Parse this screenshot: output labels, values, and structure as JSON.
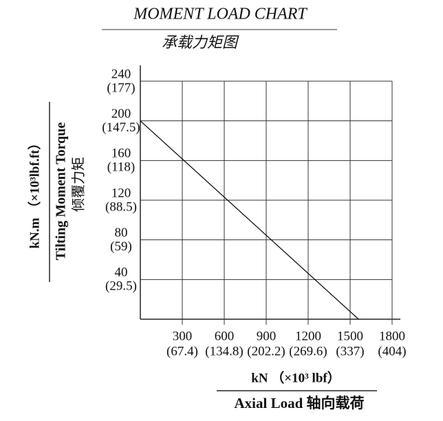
{
  "chart_data": {
    "type": "line",
    "title": "MOMENT LOAD CHART",
    "subtitle": "承载力矩图",
    "y_label_units": "kN.m （×10³lbf.ft）",
    "y_label": "Tilting Moment Torque",
    "y_label_cn": "倾覆力矩",
    "x_label_units": "kN （×10³ lbf）",
    "x_label": "Axial Load  轴向载荷",
    "series": [
      {
        "color": "#000000",
        "x": [
          0,
          1560
        ],
        "values": [
          200,
          0
        ]
      }
    ],
    "xlim": [
      0,
      1800
    ],
    "xticks": [
      {
        "value": 300,
        "label": "300",
        "sub_label": "(67.4)"
      },
      {
        "value": 600,
        "label": "600",
        "sub_label": "(134.8)"
      },
      {
        "value": 900,
        "label": "900",
        "sub_label": "(202.2)"
      },
      {
        "value": 1200,
        "label": "1200",
        "sub_label": "(269.6)"
      },
      {
        "value": 1500,
        "label": "1500",
        "sub_label": "(337)"
      },
      {
        "value": 1800,
        "label": "1800",
        "sub_label": "(404)"
      }
    ],
    "ylim": [
      0,
      240
    ],
    "yticks": [
      {
        "value": 40,
        "label": "40",
        "sub_label": "(29.5)"
      },
      {
        "value": 80,
        "label": "80",
        "sub_label": "(59)"
      },
      {
        "value": 120,
        "label": "120",
        "sub_label": "(88.5)"
      },
      {
        "value": 160,
        "label": "160",
        "sub_label": "(118)"
      },
      {
        "value": 200,
        "label": "200",
        "sub_label": "(147.5)"
      },
      {
        "value": 240,
        "label": "240",
        "sub_label": "(177)"
      }
    ],
    "grid": true
  }
}
